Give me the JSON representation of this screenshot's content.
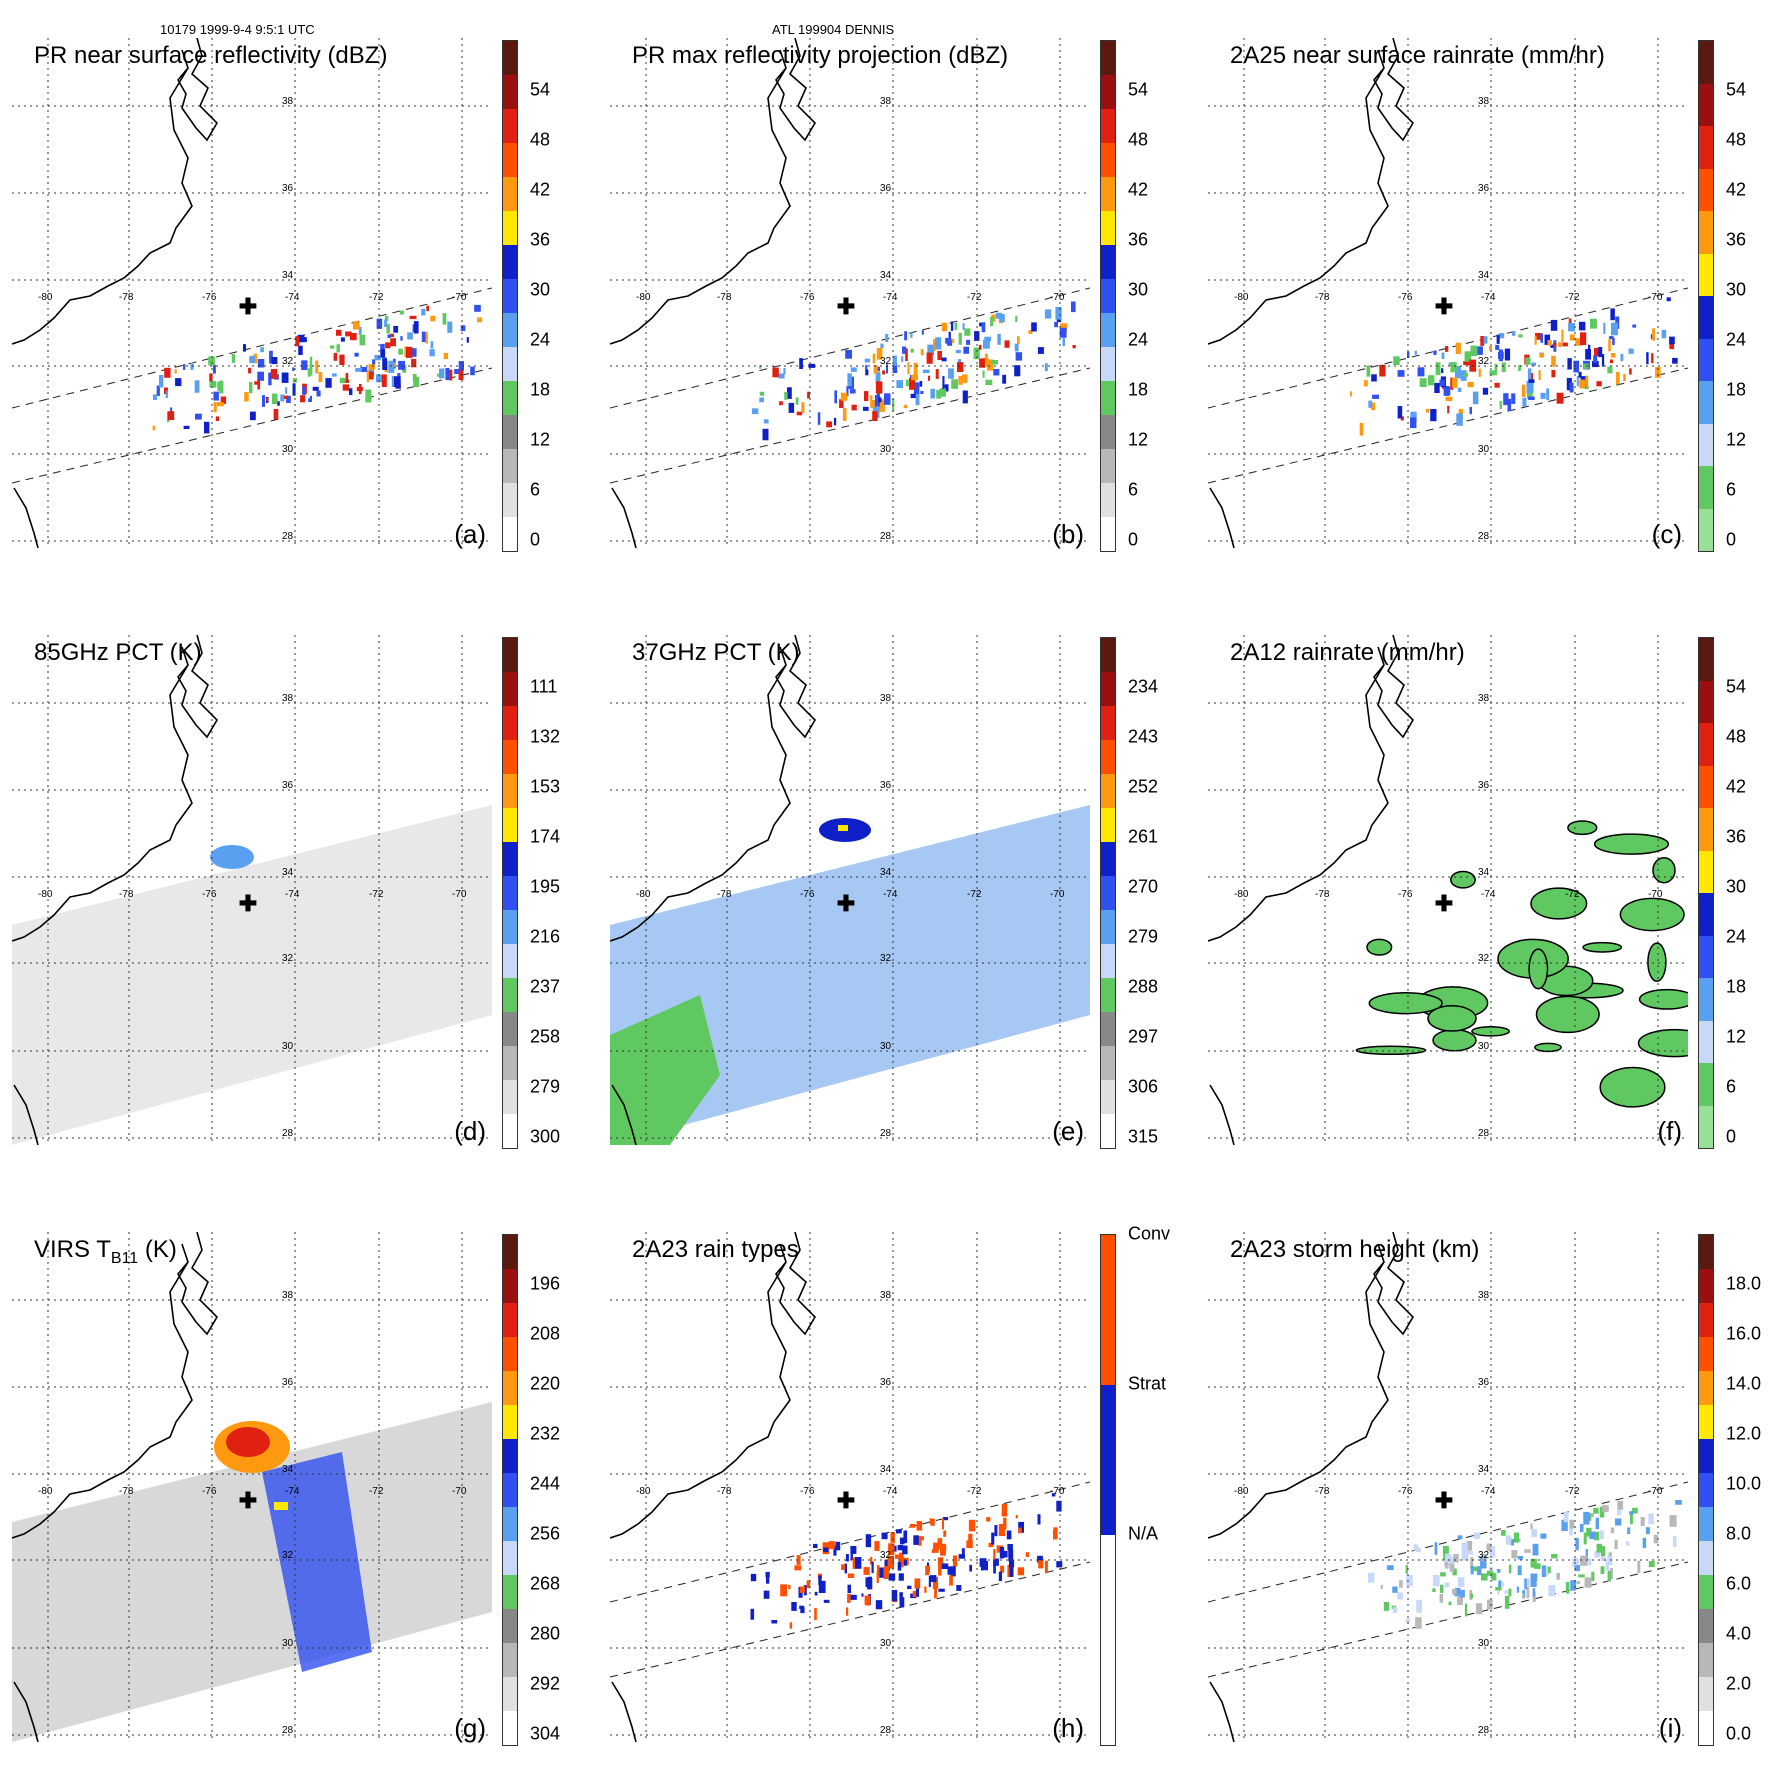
{
  "header": {
    "left": "10179 1999-9-4 9:5:1 UTC",
    "center": "ATL 199904 DENNIS"
  },
  "map_labels": {
    "lons": [
      "-80",
      "-78",
      "-76",
      "-74",
      "-72",
      "-70"
    ],
    "lats": [
      "38",
      "36",
      "34",
      "32",
      "30",
      "28"
    ]
  },
  "panels": [
    {
      "title": "PR near surface reflectivity (dBZ)",
      "label": "(a)",
      "ticks": [
        "54",
        "48",
        "42",
        "36",
        "30",
        "24",
        "18",
        "12",
        "6",
        "0"
      ],
      "colors": [
        "#5a1a10",
        "#9a1010",
        "#e02010",
        "#ff5000",
        "#ff9a10",
        "#ffe800",
        "#1020c8",
        "#3050f0",
        "#5aa0f0",
        "#c8d8f8",
        "#60c860",
        "#888888",
        "#b8b8b8",
        "#e0e0e0",
        "#ffffff"
      ],
      "field": "swath"
    },
    {
      "title": "PR max reflectivity projection (dBZ)",
      "label": "(b)",
      "ticks": [
        "54",
        "48",
        "42",
        "36",
        "30",
        "24",
        "18",
        "12",
        "6",
        "0"
      ],
      "colors": [
        "#5a1a10",
        "#9a1010",
        "#e02010",
        "#ff5000",
        "#ff9a10",
        "#ffe800",
        "#1020c8",
        "#3050f0",
        "#5aa0f0",
        "#c8d8f8",
        "#60c860",
        "#888888",
        "#b8b8b8",
        "#e0e0e0",
        "#ffffff"
      ],
      "field": "swath"
    },
    {
      "title": "2A25 near surface rainrate (mm/hr)",
      "label": "(c)",
      "ticks": [
        "54",
        "48",
        "42",
        "36",
        "30",
        "24",
        "18",
        "12",
        "6",
        "0"
      ],
      "colors": [
        "#5a1a10",
        "#9a1010",
        "#e02010",
        "#ff5000",
        "#ff9a10",
        "#ffe800",
        "#1020c8",
        "#3050f0",
        "#5aa0f0",
        "#c8d8f8",
        "#60c860",
        "#98e098"
      ],
      "field": "swath"
    },
    {
      "title": "85GHz PCT (K)",
      "label": "(d)",
      "ticks": [
        "111",
        "132",
        "153",
        "174",
        "195",
        "216",
        "237",
        "258",
        "279",
        "300"
      ],
      "colors": [
        "#5a1a10",
        "#9a1010",
        "#e02010",
        "#ff5000",
        "#ff9a10",
        "#ffe800",
        "#1020c8",
        "#3050f0",
        "#5aa0f0",
        "#c8d8f8",
        "#60c860",
        "#888888",
        "#b8b8b8",
        "#e0e0e0",
        "#ffffff"
      ],
      "field": "wide-grey"
    },
    {
      "title": "37GHz PCT (K)",
      "label": "(e)",
      "ticks": [
        "234",
        "243",
        "252",
        "261",
        "270",
        "279",
        "288",
        "297",
        "306",
        "315"
      ],
      "colors": [
        "#5a1a10",
        "#9a1010",
        "#e02010",
        "#ff5000",
        "#ff9a10",
        "#ffe800",
        "#1020c8",
        "#3050f0",
        "#5aa0f0",
        "#c8d8f8",
        "#60c860",
        "#888888",
        "#b8b8b8",
        "#e0e0e0",
        "#ffffff"
      ],
      "field": "wide-blue"
    },
    {
      "title": "2A12 rainrate (mm/hr)",
      "label": "(f)",
      "ticks": [
        "54",
        "48",
        "42",
        "36",
        "30",
        "24",
        "18",
        "12",
        "6",
        "0"
      ],
      "colors": [
        "#5a1a10",
        "#9a1010",
        "#e02010",
        "#ff5000",
        "#ff9a10",
        "#ffe800",
        "#1020c8",
        "#3050f0",
        "#5aa0f0",
        "#c8d8f8",
        "#60c860",
        "#98e098"
      ],
      "field": "green-bands"
    },
    {
      "title": "VIRS T",
      "title_sub": "B11",
      "title_end": " (K)",
      "label": "(g)",
      "ticks": [
        "196",
        "208",
        "220",
        "232",
        "244",
        "256",
        "268",
        "280",
        "292",
        "304"
      ],
      "colors": [
        "#5a1a10",
        "#9a1010",
        "#e02010",
        "#ff5000",
        "#ff9a10",
        "#ffe800",
        "#1020c8",
        "#3050f0",
        "#5aa0f0",
        "#c8d8f8",
        "#60c860",
        "#888888",
        "#b8b8b8",
        "#e0e0e0",
        "#ffffff"
      ],
      "field": "wide-ir"
    },
    {
      "title": "2A23 rain types",
      "label": "(h)",
      "ticks": [
        "Conv",
        "Strat",
        "N/A"
      ],
      "colors": [
        "#ff5000",
        "#1020c8",
        "#ffffff"
      ],
      "field": "types"
    },
    {
      "title": "2A23 storm height (km)",
      "label": "(i)",
      "ticks": [
        "18.0",
        "16.0",
        "14.0",
        "12.0",
        "10.0",
        "8.0",
        "6.0",
        "4.0",
        "2.0",
        "0.0"
      ],
      "colors": [
        "#5a1a10",
        "#9a1010",
        "#e02010",
        "#ff5000",
        "#ff9a10",
        "#ffe800",
        "#1020c8",
        "#3050f0",
        "#5aa0f0",
        "#c8d8f8",
        "#60c860",
        "#888888",
        "#b8b8b8",
        "#e0e0e0",
        "#ffffff"
      ],
      "field": "swath-light"
    }
  ]
}
